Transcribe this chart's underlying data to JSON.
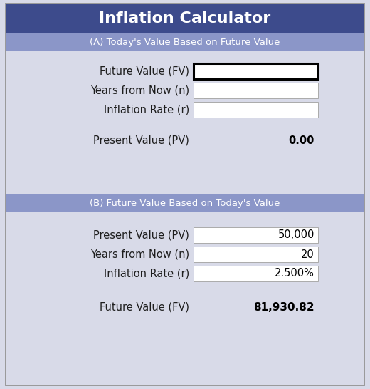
{
  "title": "Inflation Calculator",
  "title_bg": "#3D4B8C",
  "title_color": "#FFFFFF",
  "section_a_label": "(A) Today's Value Based on Future Value",
  "section_b_label": "(B) Future Value Based on Today's Value",
  "section_header_bg": "#8B96C8",
  "section_header_color": "#FFFFFF",
  "body_bg": "#D8DAE8",
  "input_box_bg": "#FFFFFF",
  "input_box_border_thick": "#000000",
  "input_box_border_thin": "#AAAAAA",
  "label_color": "#1E1E1E",
  "result_color": "#000000",
  "section_a": {
    "rows": [
      {
        "label": "Future Value (FV)",
        "value": "",
        "thick": true
      },
      {
        "label": "Years from Now (n)",
        "value": "",
        "thick": false
      },
      {
        "label": "Inflation Rate (r)",
        "value": "",
        "thick": false
      }
    ],
    "result_label": "Present Value (PV)",
    "result_value": "0.00"
  },
  "section_b": {
    "rows": [
      {
        "label": "Present Value (PV)",
        "value": "50,000",
        "thick": false
      },
      {
        "label": "Years from Now (n)",
        "value": "20",
        "thick": false
      },
      {
        "label": "Inflation Rate (r)",
        "value": "2.500%",
        "thick": false
      }
    ],
    "result_label": "Future Value (FV)",
    "result_value": "81,930.82"
  },
  "outer_border_color": "#999999",
  "fig_w": 5.2,
  "fig_h": 5.46,
  "dpi": 100
}
